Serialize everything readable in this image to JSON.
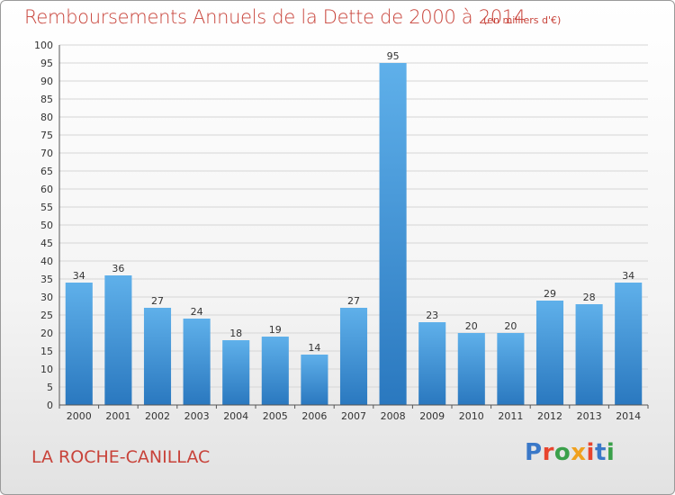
{
  "header": {
    "title": "Remboursements Annuels de la Dette de 2000 à 2014",
    "unit": "(en milliers d'€)"
  },
  "footer": {
    "commune": "LA ROCHE-CANILLAC",
    "logo_text": "Proxiti"
  },
  "colors": {
    "title": "#c8433a",
    "bar_top": "#5fb0ea",
    "bar_bottom": "#2a78bf",
    "grid": "#d6d6d6"
  },
  "chart_data": {
    "type": "bar",
    "title": "Remboursements Annuels de la Dette de 2000 à 2014",
    "xlabel": "",
    "ylabel": "",
    "categories": [
      "2000",
      "2001",
      "2002",
      "2003",
      "2004",
      "2005",
      "2006",
      "2007",
      "2008",
      "2009",
      "2010",
      "2011",
      "2012",
      "2013",
      "2014"
    ],
    "values": [
      34,
      36,
      27,
      24,
      18,
      19,
      14,
      27,
      95,
      23,
      20,
      20,
      29,
      28,
      34
    ],
    "ylim": [
      0,
      100
    ],
    "ytick_step": 5,
    "grid": true,
    "legend": "none"
  }
}
